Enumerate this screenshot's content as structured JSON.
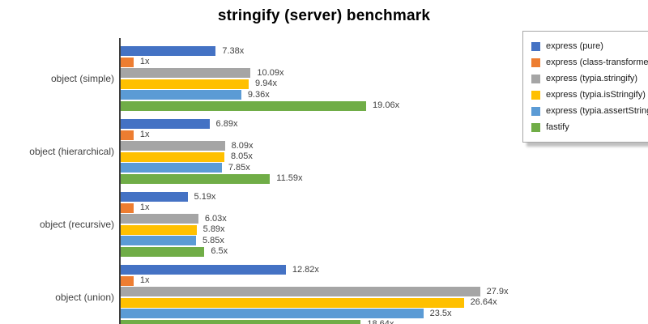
{
  "title": "stringify (server) benchmark",
  "chart_data": {
    "type": "bar",
    "orientation": "horizontal",
    "title": "stringify (server) benchmark",
    "value_suffix": "x",
    "xlabel": "",
    "ylabel": "",
    "xlim": [
      0,
      40
    ],
    "grid": false,
    "legend_position": "upper-right",
    "categories": [
      "object (simple)",
      "object (hierarchical)",
      "object (recursive)",
      "object (union)"
    ],
    "series": [
      {
        "name": "express (pure)",
        "color": "#4472C4",
        "values": [
          7.38,
          6.89,
          5.19,
          12.82
        ]
      },
      {
        "name": "express (class-transformer)",
        "color": "#ED7D31",
        "values": [
          1,
          1,
          1,
          1
        ]
      },
      {
        "name": "express (typia.stringify)",
        "color": "#A5A5A5",
        "values": [
          10.09,
          8.09,
          6.03,
          27.9
        ]
      },
      {
        "name": "express (typia.isStringify)",
        "color": "#FFC000",
        "values": [
          9.94,
          8.05,
          5.89,
          26.64
        ]
      },
      {
        "name": "express (typia.assertStringify)",
        "color": "#5B9BD5",
        "values": [
          9.36,
          7.85,
          5.85,
          23.5
        ]
      },
      {
        "name": "fastify",
        "color": "#70AD47",
        "values": [
          19.06,
          11.59,
          6.5,
          18.64
        ]
      }
    ],
    "bar_value_labels": [
      [
        "7.38x",
        "6.89x",
        "5.19x",
        "12.82x"
      ],
      [
        "1x",
        "1x",
        "1x",
        "1x"
      ],
      [
        "10.09x",
        "8.09x",
        "6.03x",
        "27.9x"
      ],
      [
        "9.94x",
        "8.05x",
        "5.89x",
        "26.64x"
      ],
      [
        "9.36x",
        "7.85x",
        "5.85x",
        "23.5x"
      ],
      [
        "19.06x",
        "11.59x",
        "6.5x",
        "18.64x"
      ]
    ]
  }
}
